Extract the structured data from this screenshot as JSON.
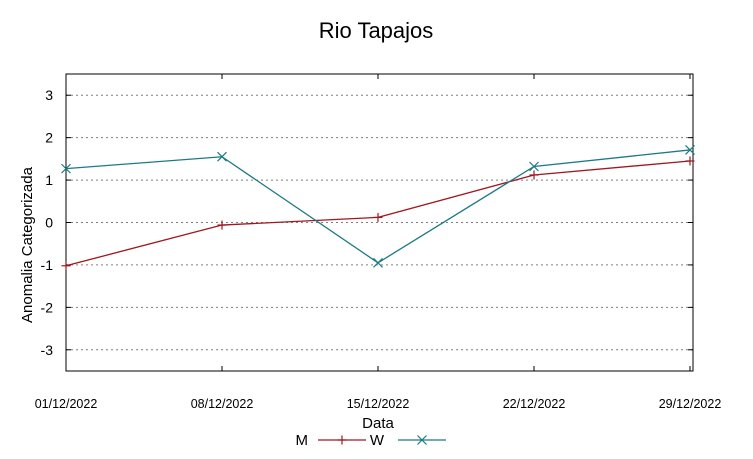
{
  "chart_data": {
    "type": "line",
    "title": "Rio Tapajos",
    "xlabel": "Data",
    "ylabel": "Anomalia Categorizada",
    "categories": [
      "01/12/2022",
      "08/12/2022",
      "15/12/2022",
      "22/12/2022",
      "29/12/2022"
    ],
    "ylim": [
      -3.5,
      3.5
    ],
    "yticks": [
      3,
      2,
      1,
      0,
      -1,
      -2,
      -3
    ],
    "ytick_labels": [
      "3",
      "2",
      "1",
      "0",
      "-1",
      "-2",
      "-3"
    ],
    "grid": true,
    "legend_position": "bottom-center",
    "series": [
      {
        "name": "M",
        "color": "#a0171f",
        "marker": "plus",
        "values": [
          -1.02,
          -0.06,
          0.12,
          1.12,
          1.45
        ]
      },
      {
        "name": "W",
        "color": "#1b7a85",
        "marker": "cross",
        "values": [
          1.27,
          1.55,
          -0.95,
          1.32,
          1.71
        ]
      }
    ]
  }
}
